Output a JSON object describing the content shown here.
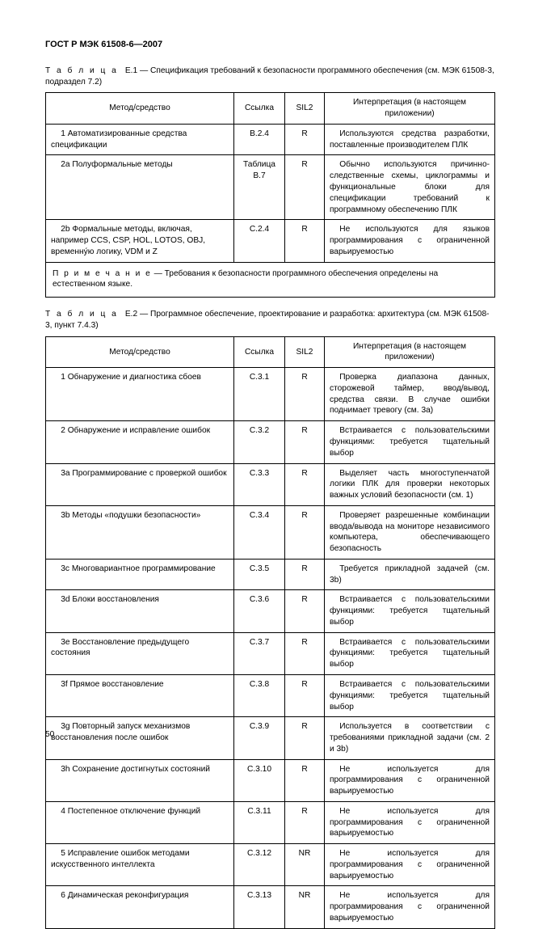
{
  "doc_title": "ГОСТ Р МЭК 61508-6—2007",
  "page_number": "50",
  "table1": {
    "caption_prefix": "Т а б л и ц а",
    "caption_number": "Е.1",
    "caption_text": "— Спецификация требований к безопасности программного обеспечения (см. МЭК 61508-3, подраздел 7.2)",
    "headers": {
      "method": "Метод/средство",
      "ref": "Ссылка",
      "sil": "SIL2",
      "interp": "Интерпретация (в настоящем приложении)"
    },
    "rows": [
      {
        "method": "1 Автоматизированные средства спецификации",
        "ref": "В.2.4",
        "sil": "R",
        "interp": "Используются средства разработки, поставленные производителем ПЛК"
      },
      {
        "method": "2а Полуформальные методы",
        "ref": "Таблица В.7",
        "sil": "R",
        "interp": "Обычно используются причинно-следственные схемы, циклограммы и функциональные блоки для спецификации требований к программному обеспечению ПЛК"
      },
      {
        "method": "2b Формальные методы, включая, например CCS, CSP, HOL, LOTOS, OBJ, временну́ю логику, VDM и Z",
        "ref": "С.2.4",
        "sil": "R",
        "interp": "Не используются для языков программирования с ограниченной варьируемостью"
      }
    ],
    "note_prefix": "П р и м е ч а н и е",
    "note_text": "— Требования к безопасности программного обеспечения определены на естественном языке."
  },
  "table2": {
    "caption_prefix": "Т а б л и ц а",
    "caption_number": "Е.2",
    "caption_text": "— Программное обеспечение, проектирование и разработка: архитектура (см. МЭК 61508-3, пункт 7.4.3)",
    "headers": {
      "method": "Метод/средство",
      "ref": "Ссылка",
      "sil": "SIL2",
      "interp": "Интерпретация (в настоящем приложении)"
    },
    "rows": [
      {
        "method": "1 Обнаружение и диагностика сбоев",
        "ref": "С.3.1",
        "sil": "R",
        "interp": "Проверка диапазона данных, сторожевой таймер, ввод/вывод, средства связи. В случае ошибки поднимает тревогу (см. 3a)"
      },
      {
        "method": "2 Обнаружение и исправление ошибок",
        "ref": "С.3.2",
        "sil": "R",
        "interp": "Встраивается с пользовательскими функциями: требуется тщательный выбор"
      },
      {
        "method": "3a Программирование с проверкой ошибок",
        "ref": "С.3.3",
        "sil": "R",
        "interp": "Выделяет часть многоступенчатой логики ПЛК для проверки некоторых важных условий безопасности (см. 1)"
      },
      {
        "method": "3b Методы «подушки безопасности»",
        "ref": "С.3.4",
        "sil": "R",
        "interp": "Проверяет разрешенные комбинации ввода/вывода на мониторе независимого компьютера, обеспечивающего безопасность"
      },
      {
        "method": "3c Многовариантное программирование",
        "ref": "С.3.5",
        "sil": "R",
        "interp": "Требуется прикладной задачей (см. 3b)"
      },
      {
        "method": "3d Блоки восстановления",
        "ref": "С.3.6",
        "sil": "R",
        "interp": "Встраивается с пользовательскими функциями: требуется тщательный выбор"
      },
      {
        "method": "3e Восстановление предыдущего состояния",
        "ref": "С.3.7",
        "sil": "R",
        "interp": "Встраивается с пользовательскими функциями: требуется тщательный выбор"
      },
      {
        "method": "3f Прямое восстановление",
        "ref": "С.3.8",
        "sil": "R",
        "interp": "Встраивается с пользовательскими функциями: требуется тщательный выбор"
      },
      {
        "method": "3g Повторный запуск механизмов восстановления после ошибок",
        "ref": "С.3.9",
        "sil": "R",
        "interp": "Используется в соответствии с требованиями прикладной задачи (см. 2 и 3b)"
      },
      {
        "method": "3h Сохранение достигнутых состояний",
        "ref": "С.3.10",
        "sil": "R",
        "interp": "Не используется для программирования с ограниченной варьируемостью"
      },
      {
        "method": "4 Постепенное отключение функций",
        "ref": "С.3.11",
        "sil": "R",
        "interp": "Не используется для программирования с ограниченной варьируемостью"
      },
      {
        "method": "5 Исправление ошибок методами искусственного интеллекта",
        "ref": "С.3.12",
        "sil": "NR",
        "interp": "Не используется для программирования с ограниченной варьируемостью"
      },
      {
        "method": "6 Динамическая реконфигурация",
        "ref": "С.3.13",
        "sil": "NR",
        "interp": "Не используется для программирования с ограниченной варьируемостью"
      }
    ]
  }
}
